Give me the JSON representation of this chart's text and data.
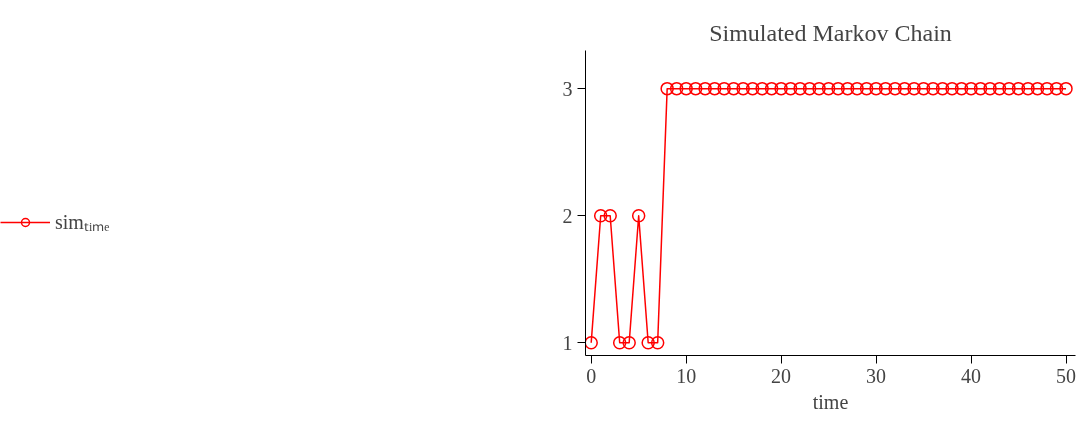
{
  "chart_data": {
    "type": "line",
    "title": "Simulated Markov Chain",
    "xlabel": "time",
    "x": [
      0,
      1,
      2,
      3,
      4,
      5,
      6,
      7,
      8,
      9,
      10,
      11,
      12,
      13,
      14,
      15,
      16,
      17,
      18,
      19,
      20,
      21,
      22,
      23,
      24,
      25,
      26,
      27,
      28,
      29,
      30,
      31,
      32,
      33,
      34,
      35,
      36,
      37,
      38,
      39,
      40,
      41,
      42,
      43,
      44,
      45,
      46,
      47,
      48,
      49,
      50
    ],
    "series": [
      {
        "name": "simₜᵢₘₑ",
        "color": "#ff0000",
        "values": [
          1,
          2,
          2,
          1,
          1,
          2,
          1,
          1,
          3,
          3,
          3,
          3,
          3,
          3,
          3,
          3,
          3,
          3,
          3,
          3,
          3,
          3,
          3,
          3,
          3,
          3,
          3,
          3,
          3,
          3,
          3,
          3,
          3,
          3,
          3,
          3,
          3,
          3,
          3,
          3,
          3,
          3,
          3,
          3,
          3,
          3,
          3,
          3,
          3,
          3,
          3
        ]
      }
    ],
    "xlim": [
      -0.6,
      51
    ],
    "ylim": [
      0.9,
      3.3
    ],
    "xticks": [
      0,
      10,
      20,
      30,
      40,
      50
    ],
    "yticks": [
      1,
      2,
      3
    ],
    "grid": false,
    "legend": "left",
    "marker": "circle",
    "line_style": "solid"
  }
}
